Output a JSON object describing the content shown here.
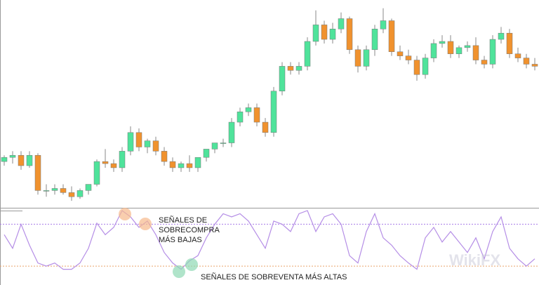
{
  "chart_data": [
    {
      "type": "candlestick",
      "up_color": "#4fe39b",
      "down_color": "#f0922e",
      "wick_color": "#8a8a8a",
      "ylim": [
        0,
        100
      ],
      "open": [
        22,
        24,
        25,
        20,
        25,
        8,
        8,
        9,
        7,
        5,
        8,
        11,
        22,
        21,
        19,
        27,
        36,
        29,
        32,
        27,
        22,
        19,
        21,
        19,
        24,
        28,
        31,
        31,
        41,
        46,
        48,
        41,
        36,
        56,
        68,
        66,
        68,
        80,
        88,
        81,
        86,
        91,
        76,
        68,
        76,
        86,
        90,
        75,
        73,
        71,
        64,
        72,
        79,
        80,
        74,
        77,
        78,
        71,
        69,
        81,
        84,
        74,
        72,
        69
      ],
      "high": [
        25,
        27,
        27,
        27,
        26,
        11,
        11,
        11,
        10,
        9,
        11,
        23,
        28,
        23,
        29,
        39,
        38,
        33,
        34,
        29,
        24,
        22,
        25,
        23,
        27,
        30,
        33,
        43,
        48,
        50,
        50,
        43,
        58,
        70,
        70,
        70,
        82,
        95,
        90,
        89,
        94,
        92,
        78,
        78,
        88,
        96,
        91,
        78,
        76,
        73,
        74,
        81,
        83,
        83,
        78,
        80,
        82,
        73,
        83,
        87,
        86,
        77,
        74,
        72
      ],
      "low": [
        20,
        21,
        18,
        19,
        6,
        5,
        6,
        6,
        3,
        4,
        6,
        10,
        19,
        17,
        17,
        25,
        27,
        26,
        25,
        20,
        17,
        17,
        17,
        17,
        22,
        26,
        29,
        29,
        39,
        44,
        39,
        34,
        34,
        54,
        64,
        64,
        66,
        78,
        79,
        79,
        84,
        74,
        65,
        66,
        73,
        84,
        73,
        71,
        69,
        61,
        62,
        70,
        77,
        72,
        72,
        75,
        69,
        67,
        67,
        79,
        72,
        70,
        67,
        66
      ],
      "close": [
        24,
        25,
        20,
        25,
        8,
        8,
        9,
        7,
        5,
        8,
        11,
        22,
        21,
        19,
        27,
        36,
        29,
        32,
        27,
        22,
        19,
        21,
        19,
        24,
        28,
        31,
        31,
        41,
        46,
        48,
        41,
        36,
        56,
        68,
        66,
        68,
        80,
        88,
        81,
        86,
        91,
        76,
        68,
        76,
        86,
        90,
        75,
        73,
        71,
        64,
        72,
        79,
        80,
        74,
        77,
        78,
        71,
        69,
        81,
        84,
        74,
        72,
        69,
        68
      ]
    },
    {
      "type": "line",
      "color": "#b58ee6",
      "ylim": [
        12,
        85
      ],
      "levels": [
        {
          "value": 70,
          "color": "#a87be8"
        },
        {
          "value": 30,
          "color": "#e9a46a"
        }
      ],
      "values": [
        60,
        47,
        70,
        50,
        33,
        30,
        33,
        27,
        27,
        33,
        47,
        71,
        60,
        67,
        83,
        77,
        67,
        73,
        60,
        43,
        33,
        27,
        35,
        40,
        57,
        70,
        80,
        77,
        80,
        73,
        60,
        47,
        73,
        70,
        63,
        80,
        83,
        63,
        77,
        80,
        70,
        40,
        33,
        63,
        80,
        57,
        50,
        40,
        33,
        27,
        57,
        67,
        53,
        63,
        53,
        43,
        57,
        37,
        63,
        77,
        47,
        37,
        30,
        37
      ]
    }
  ],
  "annotations": [
    {
      "lines": [
        "SEÑALES DE",
        "SOBRECOMPRA",
        "MÁS BAJAS"
      ]
    },
    {
      "text": "SEÑALES DE SOBREVENTA MÁS ALTAS"
    }
  ],
  "watermark": "WikiFX"
}
